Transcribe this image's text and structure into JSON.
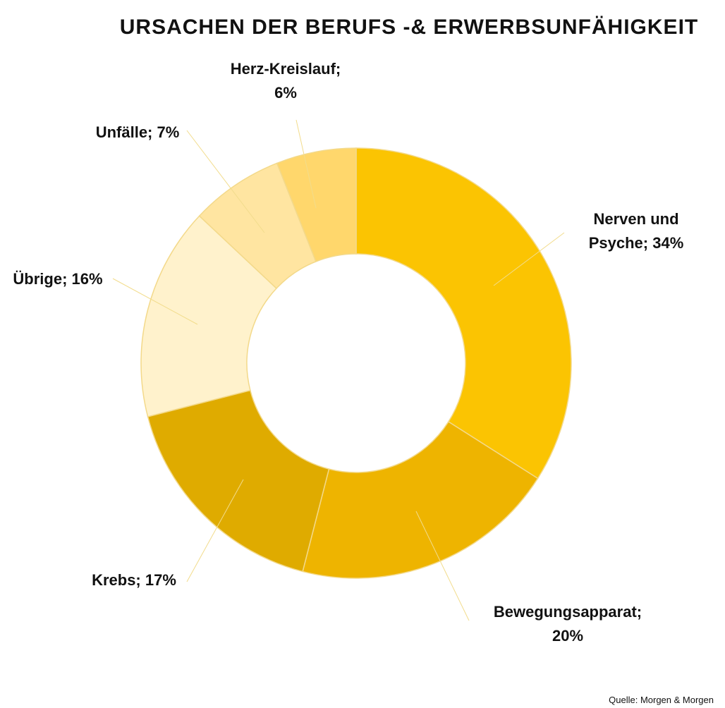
{
  "chart_data": {
    "type": "pie",
    "title": "URSACHEN DER BERUFS -& ERWERBSUNFÄHIGKEIT",
    "categories": [
      "Nerven und Psyche",
      "Bewegungsapparat",
      "Krebs",
      "Übrige",
      "Unfälle",
      "Herz-Kreislauf"
    ],
    "values": [
      34,
      20,
      17,
      16,
      7,
      6
    ],
    "labels": [
      [
        "Nerven und",
        "Psyche; 34%"
      ],
      [
        "Bewegungsapparat;",
        "20%"
      ],
      [
        "Krebs; 17%"
      ],
      [
        "Übrige; 16%"
      ],
      [
        "Unfälle; 7%"
      ],
      [
        "Herz-Kreislauf;",
        "6%"
      ]
    ],
    "colors": [
      "#FBC402",
      "#EEB400",
      "#DFAB00",
      "#FFF2CC",
      "#FFE5A1",
      "#FFD76C"
    ],
    "donut": true,
    "start_angle_deg": 0,
    "direction": "clockwise",
    "legend": "none"
  },
  "source": "Quelle: Morgen & Morgen"
}
